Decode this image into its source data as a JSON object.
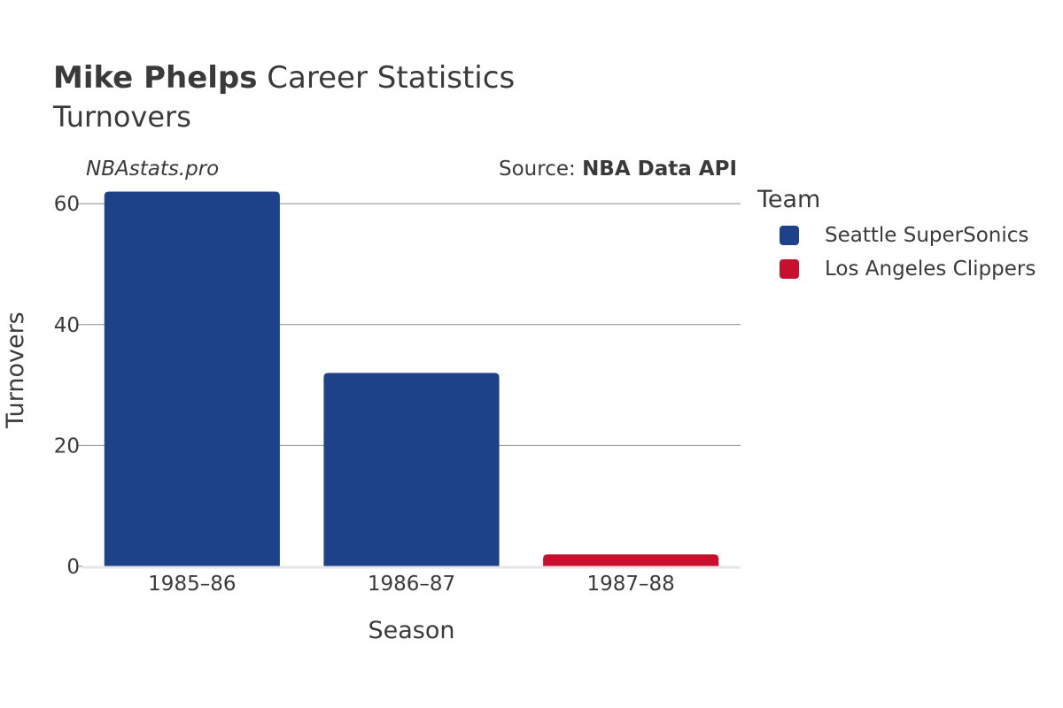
{
  "header": {
    "title_bold": "Mike Phelps",
    "title_rest": " Career Statistics",
    "subtitle": "Turnovers",
    "branding": "NBAstats.pro",
    "source_prefix": "Source: ",
    "source_name": "NBA Data API"
  },
  "legend": {
    "title": "Team",
    "items": [
      {
        "label": "Seattle SuperSonics",
        "color": "#1d428a"
      },
      {
        "label": "Los Angeles Clippers",
        "color": "#c8102e"
      }
    ]
  },
  "chart_data": {
    "type": "bar",
    "categories": [
      "1985–86",
      "1986–87",
      "1987–88"
    ],
    "values": [
      62,
      32,
      2
    ],
    "teams": [
      "Seattle SuperSonics",
      "Seattle SuperSonics",
      "Los Angeles Clippers"
    ],
    "colors": [
      "#1d428a",
      "#1d428a",
      "#c8102e"
    ],
    "xlabel": "Season",
    "ylabel": "Turnovers",
    "ylim": [
      0,
      65
    ],
    "yticks": [
      0,
      20,
      40,
      60
    ],
    "grid": true,
    "legend_position": "right"
  }
}
